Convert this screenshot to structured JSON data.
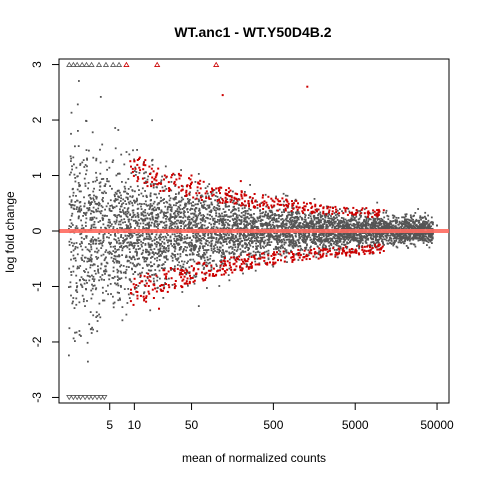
{
  "chart_data": {
    "type": "scatter",
    "title": "WT.anc1 - WT.Y50D4B.2",
    "xlabel": "mean of normalized counts",
    "ylabel": "log fold change",
    "x_scale": "log",
    "xlim": [
      1.2,
      70000
    ],
    "ylim": [
      -3.1,
      3.1
    ],
    "x_ticks": [
      5,
      10,
      50,
      500,
      5000,
      50000
    ],
    "x_tick_labels": [
      "5",
      "10",
      "50",
      "500",
      "5000",
      "50000"
    ],
    "y_ticks": [
      -3,
      -2,
      -1,
      0,
      1,
      2,
      3
    ],
    "y_tick_labels": [
      "-3",
      "-2",
      "-1",
      "0",
      "1",
      "2",
      "3"
    ],
    "reference_line": {
      "y": 0,
      "color": "#ff6a5f"
    },
    "colors": {
      "not_significant": "#555555",
      "significant": "#cc0000",
      "clipped_marker": "#555555"
    },
    "series": [
      {
        "significance": "not significant",
        "points_summary": "dense cloud; spread about ±2 at low counts narrowing to about ±0.3 above 5000",
        "example_points": [
          [
            3,
            0.2
          ],
          [
            5,
            -0.8
          ],
          [
            20,
            0.5
          ],
          [
            100,
            -0.2
          ],
          [
            1000,
            0.1
          ],
          [
            10000,
            -0.05
          ],
          [
            50000,
            0.1
          ]
        ]
      },
      {
        "significance": "significant (padj < 0.1)",
        "points_summary": "two arms above and below the cloud edge, from about 10 to 10000 counts",
        "example_points": [
          [
            20,
            -1.4
          ],
          [
            50,
            1.0
          ],
          [
            200,
            0.9
          ],
          [
            500,
            -0.6
          ],
          [
            1000,
            0.5
          ],
          [
            3000,
            -0.4
          ],
          [
            120,
            2.45
          ],
          [
            1300,
            2.6
          ]
        ]
      }
    ],
    "clipped_points": {
      "top": {
        "y": 3,
        "x": [
          1.6,
          1.8,
          2.0,
          2.3,
          2.6,
          3.0,
          3.7,
          4.5,
          5.5,
          6.5,
          8.0,
          19,
          100
        ]
      },
      "bottom": {
        "y": -3,
        "x": [
          1.6,
          1.8,
          2.0,
          2.2,
          2.5,
          2.8,
          3.1,
          3.5,
          3.9,
          4.3
        ]
      }
    }
  }
}
